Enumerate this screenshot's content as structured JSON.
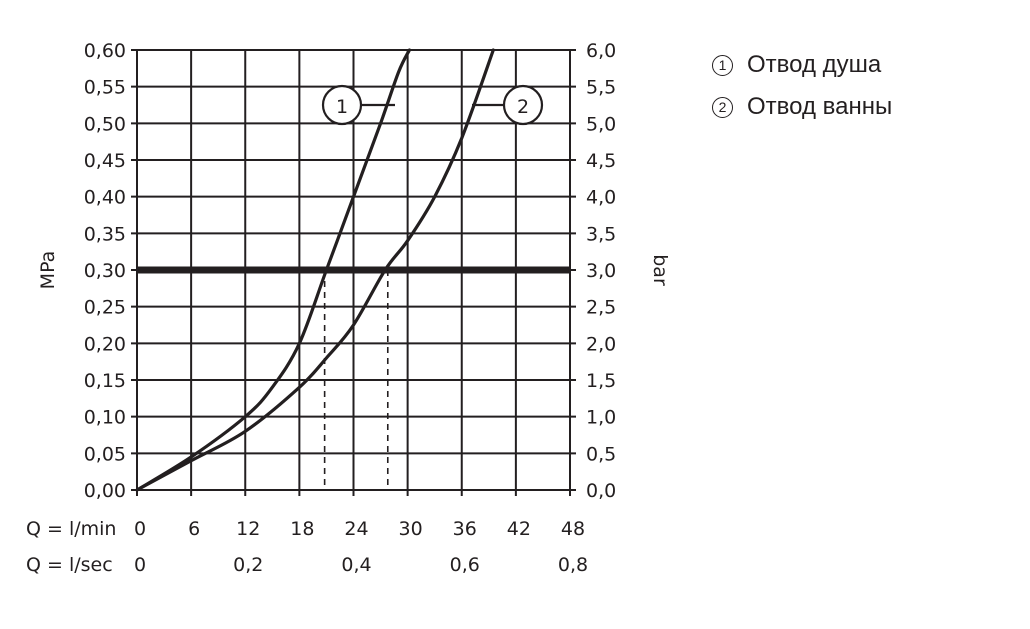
{
  "chart_data": {
    "type": "line",
    "ylabel_left": "MPa",
    "ylabel_right": "bar",
    "yticks_left": [
      "0,00",
      "0,05",
      "0,10",
      "0,15",
      "0,20",
      "0,25",
      "0,30",
      "0,35",
      "0,40",
      "0,45",
      "0,50",
      "0,55",
      "0,60"
    ],
    "yticks_right": [
      "0,0",
      "0,5",
      "1,0",
      "1,5",
      "2,0",
      "2,5",
      "3,0",
      "3,5",
      "4,0",
      "4,5",
      "5,0",
      "5,5",
      "6,0"
    ],
    "ylim": [
      0,
      0.6
    ],
    "xlim": [
      0,
      48
    ],
    "x_lmin_label": "Q = l/min",
    "xticks_lmin": [
      "0",
      "6",
      "12",
      "18",
      "24",
      "30",
      "36",
      "42",
      "48"
    ],
    "x_lsec_label": "Q = l/sec",
    "xticks_lsec": [
      "0",
      "0,2",
      "0,4",
      "0,6",
      "0,8"
    ],
    "reference_line": {
      "y": 0.3
    },
    "drop_lines": [
      {
        "x": 20.8
      },
      {
        "x": 27.8
      }
    ],
    "series": [
      {
        "name": "1",
        "x": [
          0,
          6,
          12,
          15,
          18,
          21,
          24,
          27,
          29,
          30.2
        ],
        "y": [
          0,
          0.045,
          0.1,
          0.14,
          0.2,
          0.3,
          0.4,
          0.5,
          0.57,
          0.6
        ]
      },
      {
        "name": "2",
        "x": [
          0,
          6,
          12,
          18,
          21,
          24,
          27.5,
          30,
          33,
          36,
          39.5
        ],
        "y": [
          0,
          0.04,
          0.08,
          0.14,
          0.18,
          0.225,
          0.3,
          0.34,
          0.4,
          0.48,
          0.6
        ]
      }
    ]
  },
  "legend": {
    "items": [
      {
        "num": "1",
        "label": "Отвод душа"
      },
      {
        "num": "2",
        "label": "Отвод ванны"
      }
    ]
  }
}
